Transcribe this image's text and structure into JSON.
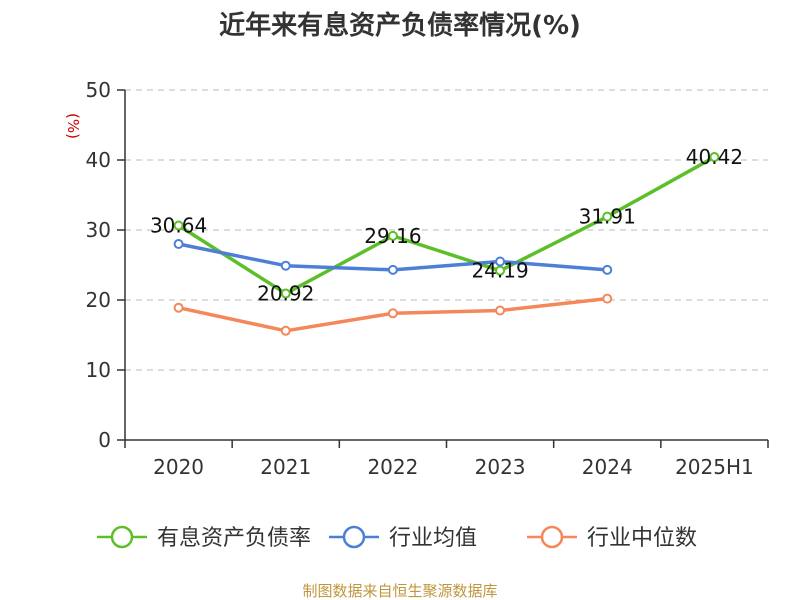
{
  "chart_data": {
    "type": "line",
    "title": "近年来有息资产负债率情况(%)",
    "ylabel": "(%)",
    "categories": [
      "2020",
      "2021",
      "2022",
      "2023",
      "2024",
      "2025H1"
    ],
    "ylim": [
      0,
      50
    ],
    "yticks": [
      0,
      10,
      20,
      30,
      40,
      50
    ],
    "grid": true,
    "legend_position": "bottom",
    "series": [
      {
        "name": "有息资产负债率",
        "color": "#5cbf2a",
        "values": [
          30.64,
          20.92,
          29.16,
          24.19,
          31.91,
          40.42
        ],
        "labels": [
          "30.64",
          "20.92",
          "29.16",
          "24.19",
          "31.91",
          "40.42"
        ]
      },
      {
        "name": "行业均值",
        "color": "#4e7fd6",
        "values": [
          28.0,
          24.9,
          24.3,
          25.5,
          24.3,
          null
        ]
      },
      {
        "name": "行业中位数",
        "color": "#f5875a",
        "values": [
          18.9,
          15.6,
          18.1,
          18.5,
          20.2,
          null
        ]
      }
    ]
  },
  "source": "制图数据来自恒生聚源数据库"
}
